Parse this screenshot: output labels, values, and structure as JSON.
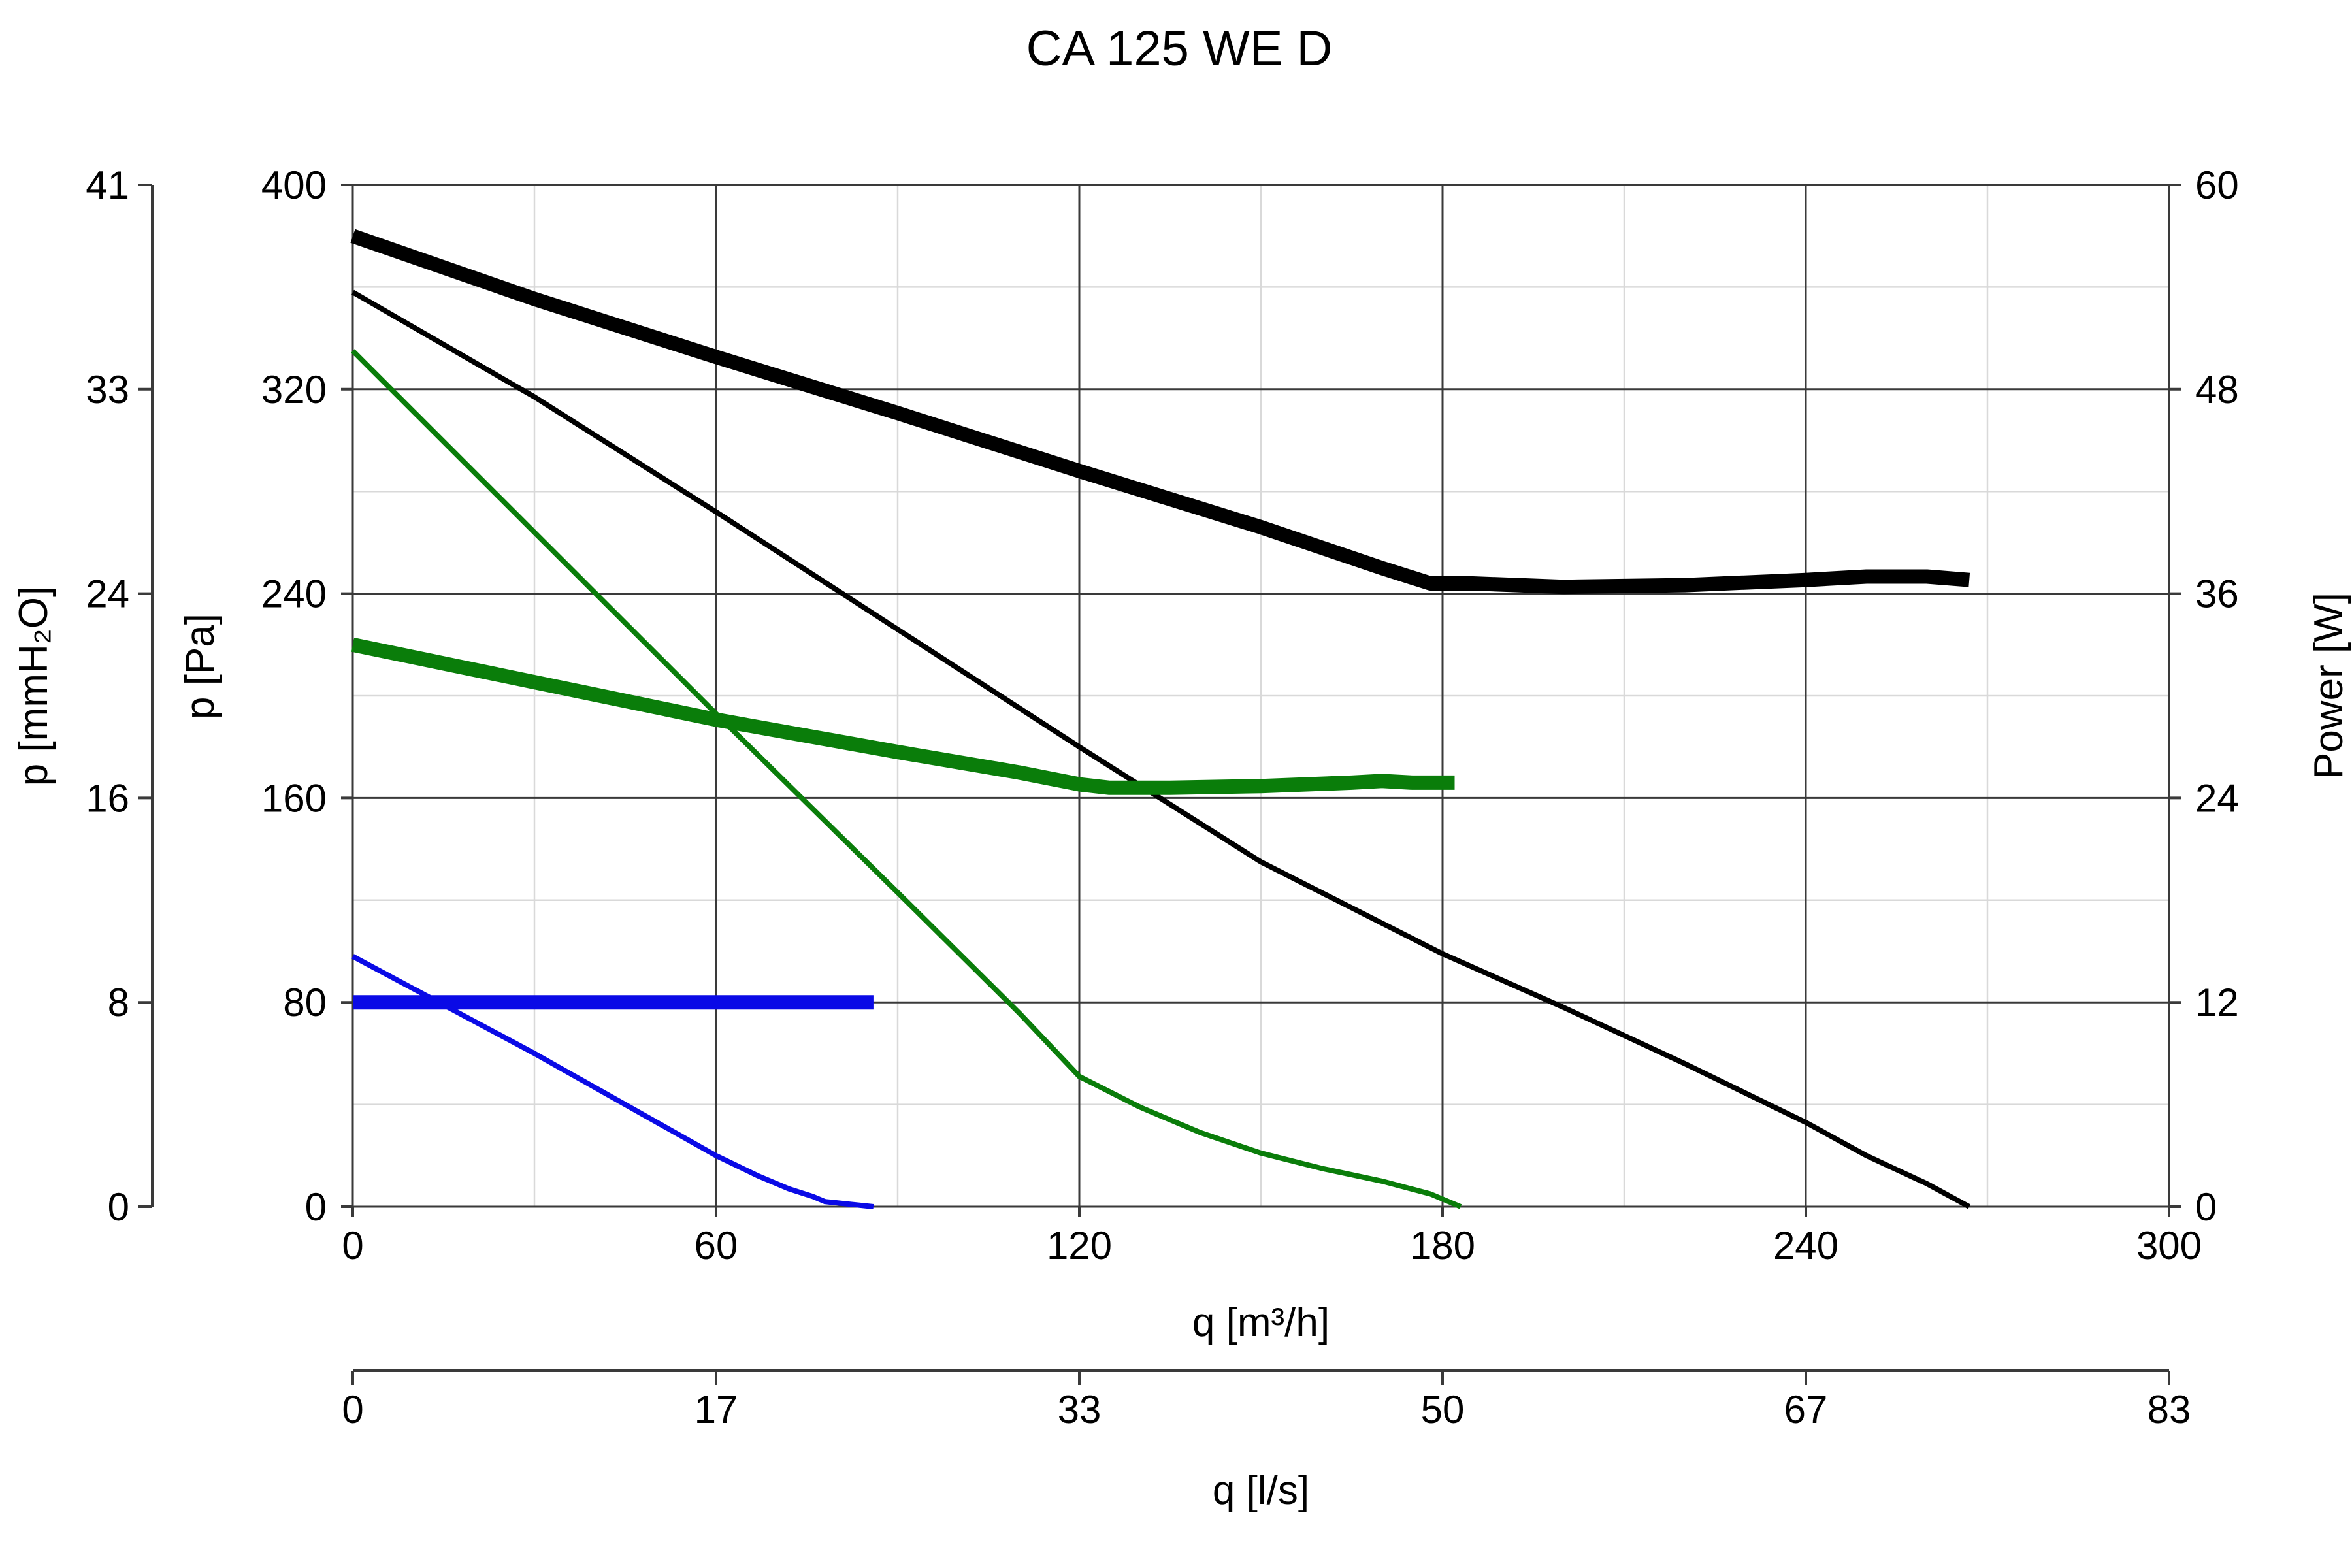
{
  "chart_data": {
    "type": "line",
    "title": "CA 125 WE D",
    "x_axis": {
      "label": "q [m³/h]",
      "range": [
        0,
        300
      ],
      "ticks": [
        0,
        60,
        120,
        180,
        240,
        300
      ],
      "minor_ticks": [
        30,
        90,
        150,
        210,
        270
      ]
    },
    "x2_axis": {
      "label": "q [l/s]",
      "tick_labels": [
        "0",
        "17",
        "33",
        "50",
        "67",
        "83"
      ]
    },
    "y_axis": {
      "label": "p [Pa]",
      "range": [
        0,
        400
      ],
      "ticks": [
        0,
        80,
        160,
        240,
        320,
        400
      ],
      "minor_ticks": [
        40,
        120,
        200,
        280,
        360
      ]
    },
    "y_left2_axis": {
      "label": "p [mmH₂O]",
      "tick_labels": [
        "0",
        "8",
        "16",
        "24",
        "33",
        "41"
      ]
    },
    "y_right_axis": {
      "label": "Power [W]",
      "range": [
        0,
        60
      ],
      "tick_labels": [
        "0",
        "12",
        "24",
        "36",
        "48",
        "60"
      ]
    },
    "grid": true,
    "legend": "none",
    "series": [
      {
        "kind": "pressure",
        "color": "#000000",
        "x": [
          0,
          30,
          60,
          90,
          120,
          150,
          180,
          200,
          220,
          240,
          250,
          260,
          267
        ],
        "y": [
          358,
          317,
          272,
          226,
          180,
          135,
          99,
          78,
          56,
          33,
          20,
          9,
          0
        ]
      },
      {
        "kind": "power",
        "color": "#000000",
        "x": [
          0,
          30,
          60,
          90,
          120,
          150,
          170,
          178,
          185,
          200,
          220,
          240,
          250,
          260,
          267
        ],
        "y": [
          57.0,
          53.3,
          49.9,
          46.6,
          43.2,
          39.9,
          37.5,
          36.6,
          36.6,
          36.4,
          36.5,
          36.8,
          37.0,
          37.0,
          36.8
        ]
      },
      {
        "kind": "pressure",
        "color": "#0a7d0a",
        "x": [
          0,
          30,
          60,
          90,
          110,
          120,
          130,
          140,
          150,
          160,
          170,
          178,
          183
        ],
        "y": [
          335,
          264,
          193,
          123,
          76,
          51,
          39,
          29,
          21,
          15,
          10,
          5,
          0
        ]
      },
      {
        "kind": "power",
        "color": "#0a7d0a",
        "x": [
          0,
          30,
          60,
          90,
          110,
          120,
          125,
          135,
          150,
          165,
          170,
          175,
          182
        ],
        "y": [
          33.0,
          30.8,
          28.6,
          26.7,
          25.5,
          24.8,
          24.6,
          24.6,
          24.7,
          24.9,
          25.0,
          24.9,
          24.9
        ]
      },
      {
        "kind": "pressure",
        "color": "#0a0ae6",
        "x": [
          0,
          15,
          30,
          45,
          60,
          67,
          72,
          76,
          78,
          82,
          86
        ],
        "y": [
          98,
          79,
          60,
          40,
          20,
          12,
          7,
          4,
          2,
          1,
          0
        ]
      },
      {
        "kind": "power",
        "color": "#0a0ae6",
        "x": [
          0,
          86
        ],
        "y": [
          12,
          12
        ]
      }
    ]
  }
}
